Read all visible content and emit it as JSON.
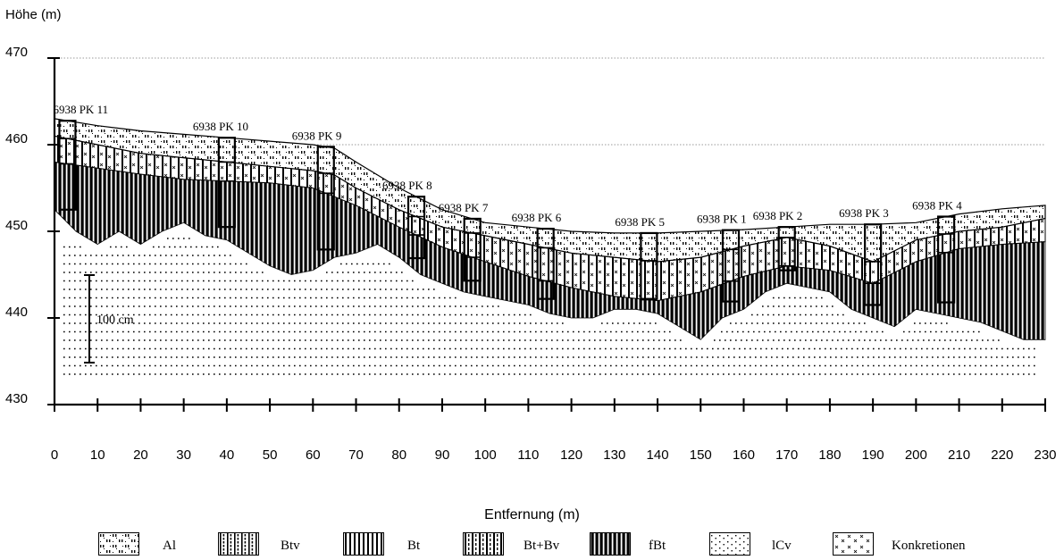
{
  "y_axis_title": "Höhe (m)",
  "x_axis_title": "Entfernung (m)",
  "y_ticks": [
    "470",
    "460",
    "450",
    "440",
    "430"
  ],
  "x_ticks": [
    "0",
    "10",
    "20",
    "30",
    "40",
    "50",
    "60",
    "70",
    "80",
    "90",
    "100",
    "110",
    "120",
    "130",
    "140",
    "150",
    "160",
    "170",
    "180",
    "190",
    "200",
    "210",
    "220",
    "230"
  ],
  "scale_bar_label": "100 cm",
  "profiles": [
    {
      "label": "6938 PK 11",
      "x": 3
    },
    {
      "label": "6938 PK 10",
      "x": 40
    },
    {
      "label": "6938 PK 9",
      "x": 63
    },
    {
      "label": "6938 PK 8",
      "x": 84
    },
    {
      "label": "6938 PK 7",
      "x": 97
    },
    {
      "label": "6938 PK 6",
      "x": 114
    },
    {
      "label": "6938 PK 5",
      "x": 138
    },
    {
      "label": "6938 PK 1",
      "x": 157
    },
    {
      "label": "6938 PK 2",
      "x": 170
    },
    {
      "label": "6938 PK 3",
      "x": 190
    },
    {
      "label": "6938 PK 4",
      "x": 207
    }
  ],
  "legend": [
    {
      "label": "Al",
      "pattern": "al"
    },
    {
      "label": "Btv",
      "pattern": "btv"
    },
    {
      "label": "Bt",
      "pattern": "bt"
    },
    {
      "label": "Bt+Bv",
      "pattern": "btbv"
    },
    {
      "label": "fBt",
      "pattern": "fbt"
    },
    {
      "label": "lCv",
      "pattern": "lcv"
    },
    {
      "label": "Konkretionen",
      "pattern": "konk"
    }
  ],
  "chart_data": {
    "type": "area",
    "xlabel": "Entfernung (m)",
    "ylabel": "Höhe (m)",
    "xlim": [
      0,
      230
    ],
    "ylim": [
      430,
      470
    ],
    "grid": "dotted horizontal lines at 460 and 470",
    "surface": {
      "x": [
        0,
        10,
        20,
        30,
        40,
        50,
        60,
        65,
        70,
        80,
        90,
        100,
        110,
        120,
        130,
        140,
        150,
        160,
        170,
        180,
        190,
        200,
        210,
        220,
        230
      ],
      "y": [
        463,
        462.2,
        461.6,
        461.2,
        460.8,
        460.4,
        460,
        459.6,
        458,
        455,
        452.5,
        451,
        450.5,
        450,
        449.8,
        449.8,
        450,
        450.2,
        450.5,
        450.8,
        450.8,
        451,
        452,
        452.6,
        453
      ]
    },
    "al_base": {
      "x": [
        0,
        10,
        20,
        30,
        40,
        50,
        60,
        65,
        70,
        80,
        90,
        100,
        110,
        120,
        130,
        140,
        150,
        160,
        170,
        180,
        190,
        200,
        210,
        220,
        230
      ],
      "y": [
        461,
        460,
        459,
        458.5,
        458,
        457.5,
        457,
        456.5,
        455,
        452.5,
        450.5,
        449.5,
        448.5,
        447.5,
        447,
        446.5,
        447,
        448.3,
        449.3,
        448.3,
        446.5,
        449,
        450,
        450.5,
        451.5
      ]
    },
    "bt_top": {
      "x": [
        0,
        10,
        20,
        30,
        40,
        50,
        60,
        65,
        70,
        80,
        90,
        100,
        110,
        120,
        130,
        140,
        150,
        160,
        170,
        180,
        190,
        200,
        210,
        220,
        230
      ],
      "y": [
        458,
        457.3,
        456.6,
        456,
        455.8,
        455.6,
        455,
        454,
        453,
        450.5,
        448.2,
        446.5,
        444.8,
        443.5,
        442.5,
        442,
        443,
        444.8,
        446,
        445.5,
        444,
        446.5,
        448,
        448.5,
        448.8
      ]
    },
    "bt_base": {
      "x": [
        0,
        5,
        10,
        15,
        20,
        25,
        30,
        35,
        40,
        45,
        50,
        55,
        60,
        65,
        70,
        75,
        80,
        85,
        90,
        95,
        100,
        105,
        110,
        115,
        120,
        125,
        130,
        135,
        140,
        145,
        150,
        155,
        160,
        165,
        170,
        175,
        180,
        185,
        190,
        195,
        200,
        205,
        210,
        215,
        220,
        225,
        230
      ],
      "y": [
        452.5,
        450,
        448.5,
        450,
        448.5,
        450,
        451,
        449.5,
        449,
        447.5,
        446,
        445,
        445.5,
        447,
        447.5,
        448.5,
        447,
        445,
        444,
        443,
        442.5,
        442,
        441.5,
        440.5,
        440,
        440,
        441,
        441,
        440.5,
        439,
        437.5,
        440,
        441,
        443,
        444,
        443.5,
        443,
        441,
        440,
        439,
        441,
        440.5,
        440,
        439.5,
        438.5,
        437.5,
        437.5
      ]
    }
  }
}
